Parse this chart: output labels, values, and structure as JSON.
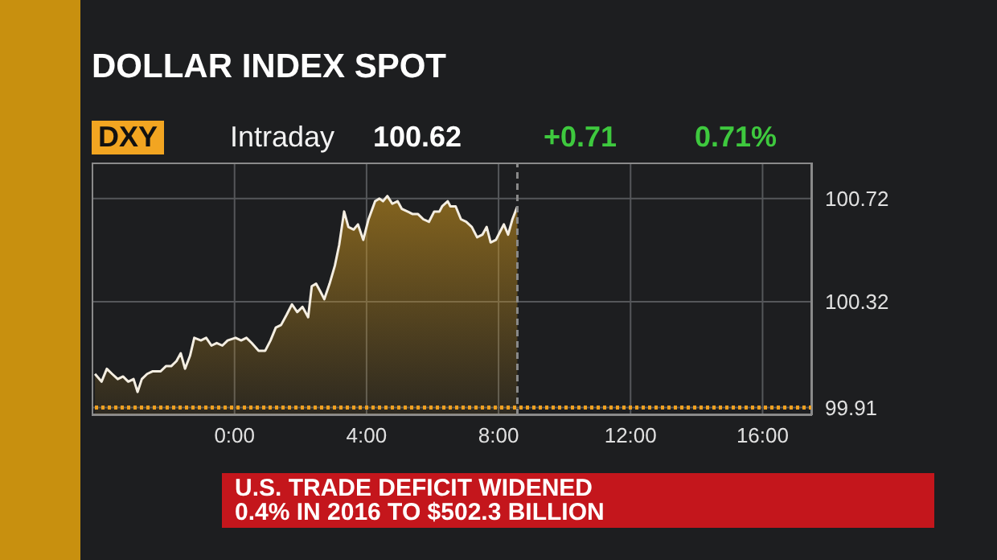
{
  "chart_data": {
    "type": "area",
    "title": "DOLLAR INDEX SPOT",
    "annotations": [
      "DXY",
      "Intraday",
      "100.62",
      "+0.71",
      "0.71%",
      "U.S. TRADE DEFICIT WIDENED",
      "0.4% IN 2016 TO $502.3 BILLION"
    ],
    "x": [
      -4.23,
      -4.03,
      -3.87,
      -3.71,
      -3.54,
      -3.38,
      -3.22,
      -3.06,
      -2.94,
      -2.81,
      -2.65,
      -2.49,
      -2.24,
      -2.08,
      -1.92,
      -1.76,
      -1.63,
      -1.5,
      -1.35,
      -1.22,
      -1.02,
      -0.86,
      -0.7,
      -0.54,
      -0.37,
      -0.21,
      0.03,
      0.2,
      0.36,
      0.52,
      0.73,
      0.93,
      1.09,
      1.25,
      1.41,
      1.58,
      1.74,
      1.9,
      2.06,
      2.23,
      2.34,
      2.47,
      2.6,
      2.72,
      2.88,
      3.04,
      3.17,
      3.32,
      3.45,
      3.61,
      3.74,
      3.9,
      4.06,
      4.26,
      4.39,
      4.5,
      4.63,
      4.78,
      4.94,
      5.07,
      5.24,
      5.4,
      5.56,
      5.72,
      5.89,
      6.05,
      6.21,
      6.29,
      6.46,
      6.54,
      6.7,
      6.86,
      7.02,
      7.19,
      7.35,
      7.51,
      7.64,
      7.76,
      7.92,
      8.08,
      8.16,
      8.29,
      8.42,
      8.57
    ],
    "series": [
      {
        "color": "#c8921e",
        "values": [
          100.04,
          100.01,
          100.06,
          100.04,
          100.02,
          100.03,
          100.01,
          100.02,
          99.97,
          100.02,
          100.04,
          100.05,
          100.05,
          100.07,
          100.07,
          100.09,
          100.12,
          100.06,
          100.11,
          100.18,
          100.17,
          100.18,
          100.15,
          100.16,
          100.15,
          100.17,
          100.18,
          100.17,
          100.18,
          100.16,
          100.13,
          100.13,
          100.17,
          100.22,
          100.23,
          100.27,
          100.31,
          100.28,
          100.3,
          100.26,
          100.38,
          100.39,
          100.36,
          100.33,
          100.39,
          100.46,
          100.54,
          100.67,
          100.61,
          100.6,
          100.62,
          100.56,
          100.64,
          100.71,
          100.72,
          100.71,
          100.73,
          100.7,
          100.71,
          100.68,
          100.67,
          100.66,
          100.66,
          100.64,
          100.63,
          100.67,
          100.67,
          100.69,
          100.71,
          100.69,
          100.69,
          100.64,
          100.63,
          100.61,
          100.57,
          100.58,
          100.61,
          100.55,
          100.56,
          100.6,
          100.62,
          100.58,
          100.64,
          100.69
        ]
      }
    ],
    "xlim": [
      -4.33,
      17.5
    ],
    "xticks": [
      {
        "value": 0,
        "label": "0:00"
      },
      {
        "value": 4,
        "label": "4:00"
      },
      {
        "value": 8,
        "label": "8:00"
      },
      {
        "value": 12,
        "label": "12:00"
      },
      {
        "value": 16,
        "label": "16:00"
      }
    ],
    "ylim": [
      99.88,
      100.86
    ],
    "yticks": [
      99.91,
      100.32,
      100.72
    ],
    "grid": true,
    "ref_lines": [
      {
        "axis": "y",
        "value": 99.91,
        "color": "#f0a020",
        "line_style": "dotted"
      },
      {
        "axis": "x",
        "value": 8.57,
        "color": "#8a8a8a",
        "line_style": "dashed"
      }
    ]
  }
}
